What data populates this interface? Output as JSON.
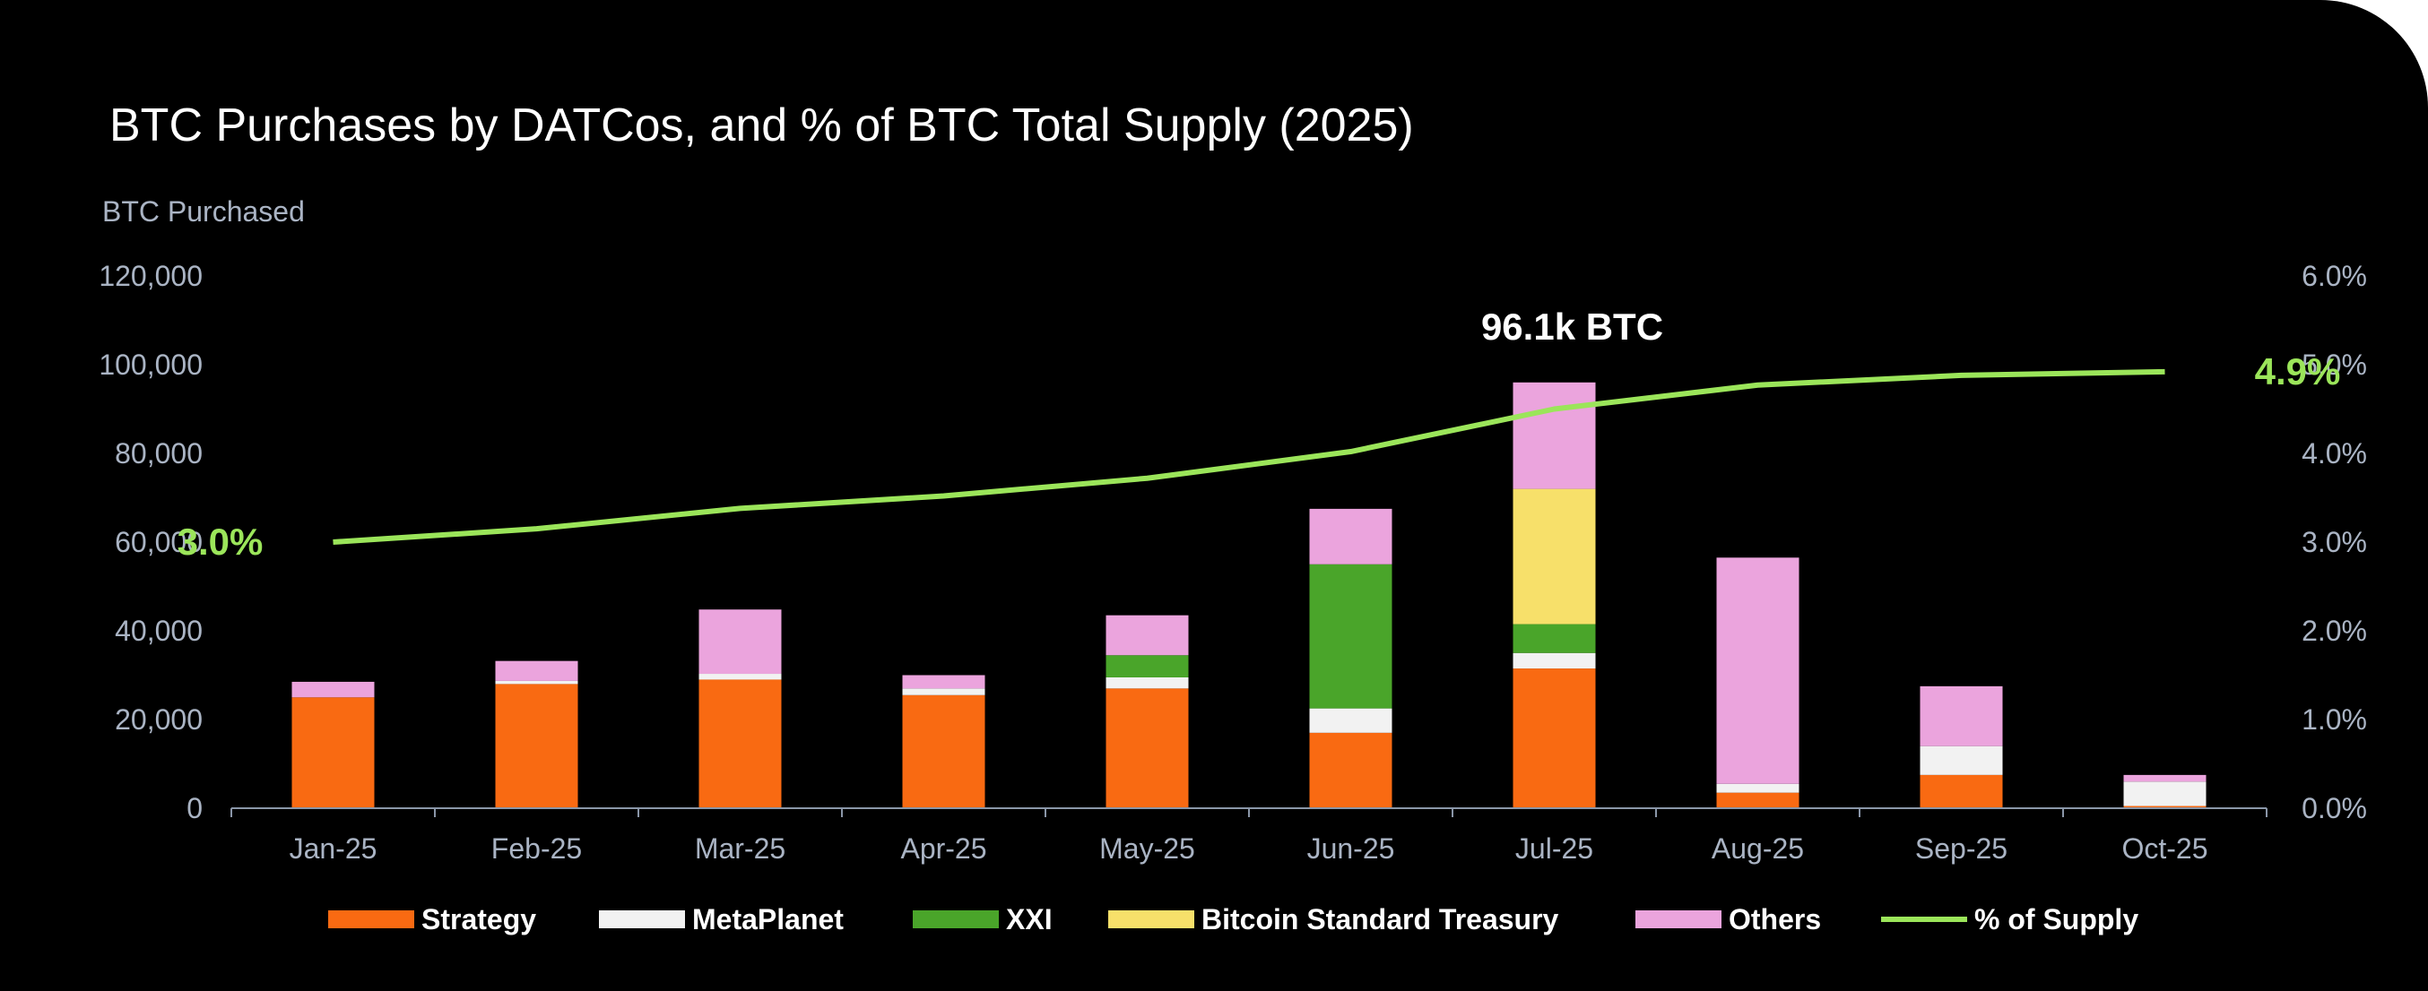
{
  "chart_data": {
    "type": "bar",
    "title": "BTC Purchases by DATCos, and % of BTC Total Supply (2025)",
    "ylabel": "BTC Purchased",
    "ylim": [
      0,
      120000
    ],
    "y_ticks": [
      "0",
      "20,000",
      "40,000",
      "60,000",
      "80,000",
      "100,000",
      "120,000"
    ],
    "y_tick_values": [
      0,
      20000,
      40000,
      60000,
      80000,
      100000,
      120000
    ],
    "y2lim": [
      0,
      6.0
    ],
    "y2_ticks": [
      "0.0%",
      "1.0%",
      "2.0%",
      "3.0%",
      "4.0%",
      "5.0%",
      "6.0%"
    ],
    "y2_tick_values": [
      0,
      1,
      2,
      3,
      4,
      5,
      6
    ],
    "categories": [
      "Jan-25",
      "Feb-25",
      "Mar-25",
      "Apr-25",
      "May-25",
      "Jun-25",
      "Jul-25",
      "Aug-25",
      "Sep-25",
      "Oct-25"
    ],
    "stacked": true,
    "series": [
      {
        "name": "Strategy",
        "color": "#f96a12",
        "values": [
          25000,
          28000,
          29000,
          25500,
          27000,
          17000,
          31500,
          3500,
          7500,
          500
        ]
      },
      {
        "name": "MetaPlanet",
        "color": "#f2f2f2",
        "values": [
          0,
          700,
          1300,
          1500,
          2500,
          5500,
          3500,
          2000,
          6500,
          5500
        ]
      },
      {
        "name": "XXI",
        "color": "#4aa52a",
        "values": [
          0,
          0,
          0,
          0,
          5000,
          32500,
          6500,
          0,
          0,
          0
        ]
      },
      {
        "name": "Bitcoin Standard Treasury",
        "color": "#f7e06a",
        "values": [
          0,
          0,
          0,
          0,
          0,
          0,
          30500,
          0,
          0,
          0
        ]
      },
      {
        "name": "Others",
        "color": "#eba4dd",
        "values": [
          3500,
          4500,
          14500,
          3000,
          9000,
          12500,
          24000,
          51000,
          13500,
          1500
        ]
      }
    ],
    "line": {
      "name": "% of Supply",
      "color": "#9be55a",
      "values": [
        3.0,
        3.15,
        3.38,
        3.52,
        3.72,
        4.02,
        4.5,
        4.77,
        4.88,
        4.92
      ]
    },
    "annotations": {
      "peak_label": "96.1k BTC",
      "start_pct_label": "3.0%",
      "end_pct_label": "4.9%"
    },
    "legend": {
      "position": "bottom",
      "items": [
        "Strategy",
        "MetaPlanet",
        "XXI",
        "Bitcoin Standard Treasury",
        "Others",
        "% of Supply"
      ]
    }
  }
}
